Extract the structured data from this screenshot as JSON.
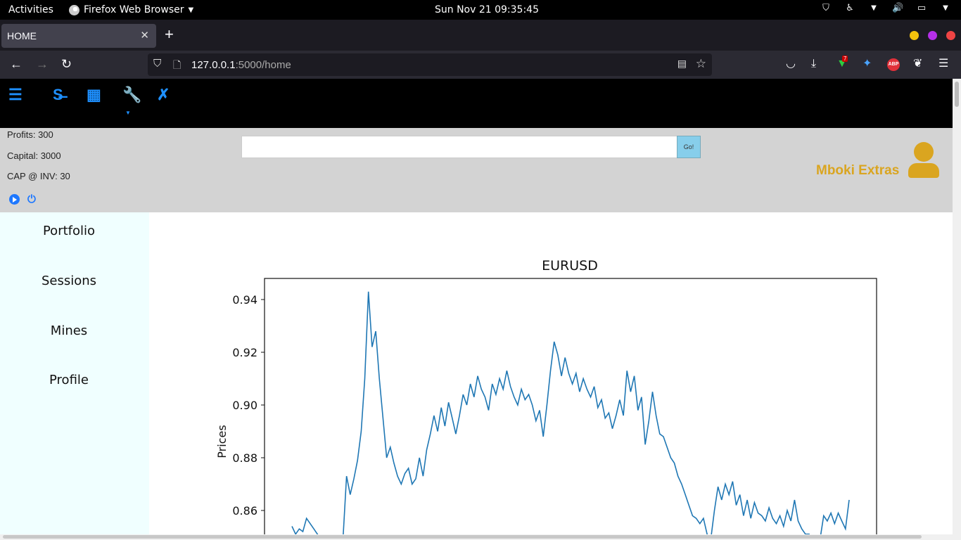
{
  "system_bar": {
    "activities": "Activities",
    "app_name": "Firefox Web Browser",
    "clock": "Sun Nov 21  09:35:45"
  },
  "browser": {
    "tab_title": "HOME",
    "url_host": "127.0.0.1",
    "url_path": ":5000/home",
    "download_badge": "7",
    "abp_label": "ABP"
  },
  "app": {
    "stats": {
      "profits": "Profits: 300",
      "capital": "Capital: 3000",
      "cap_inv": "CAP @ INV: 30"
    },
    "search": {
      "value": "",
      "button": "Go!"
    },
    "brand": "Mboki Extras",
    "sidebar": [
      "Portfolio",
      "Sessions",
      "Mines",
      "Profile"
    ],
    "colors": {
      "accent": "#1e90ff",
      "brand": "#daa520",
      "sidebar_bg": "#f0ffff",
      "info_bg": "#d3d3d3"
    }
  },
  "chart_data": {
    "type": "line",
    "title": "EURUSD",
    "ylabel": "Prices",
    "xlabel": "",
    "y_ticks": [
      "0.94",
      "0.92",
      "0.90",
      "0.88",
      "0.86"
    ],
    "ylim": [
      0.849,
      0.948
    ],
    "series": [
      {
        "color": "#1f77b4",
        "values": [
          0.854,
          0.851,
          0.853,
          0.852,
          0.857,
          0.855,
          0.853,
          0.851,
          0.849,
          0.848,
          0.849,
          0.849,
          0.849,
          0.848,
          0.849,
          0.873,
          0.866,
          0.872,
          0.879,
          0.89,
          0.91,
          0.943,
          0.922,
          0.928,
          0.91,
          0.895,
          0.88,
          0.884,
          0.878,
          0.873,
          0.87,
          0.874,
          0.876,
          0.87,
          0.872,
          0.88,
          0.873,
          0.883,
          0.889,
          0.896,
          0.89,
          0.899,
          0.892,
          0.901,
          0.895,
          0.889,
          0.896,
          0.904,
          0.9,
          0.908,
          0.903,
          0.911,
          0.906,
          0.903,
          0.898,
          0.908,
          0.904,
          0.91,
          0.906,
          0.913,
          0.907,
          0.903,
          0.9,
          0.906,
          0.902,
          0.904,
          0.9,
          0.894,
          0.898,
          0.888,
          0.9,
          0.913,
          0.924,
          0.919,
          0.911,
          0.918,
          0.912,
          0.908,
          0.912,
          0.905,
          0.91,
          0.906,
          0.903,
          0.907,
          0.899,
          0.902,
          0.895,
          0.897,
          0.891,
          0.896,
          0.902,
          0.896,
          0.913,
          0.905,
          0.911,
          0.898,
          0.903,
          0.885,
          0.894,
          0.905,
          0.896,
          0.889,
          0.888,
          0.884,
          0.88,
          0.878,
          0.873,
          0.87,
          0.866,
          0.862,
          0.858,
          0.857,
          0.855,
          0.857,
          0.851,
          0.849,
          0.86,
          0.869,
          0.864,
          0.87,
          0.866,
          0.871,
          0.862,
          0.866,
          0.858,
          0.864,
          0.857,
          0.863,
          0.859,
          0.858,
          0.856,
          0.861,
          0.857,
          0.855,
          0.858,
          0.854,
          0.86,
          0.856,
          0.864,
          0.856,
          0.853,
          0.851,
          0.851,
          0.848,
          0.847,
          0.849,
          0.858,
          0.856,
          0.859,
          0.855,
          0.859,
          0.856,
          0.853,
          0.864
        ]
      }
    ]
  }
}
